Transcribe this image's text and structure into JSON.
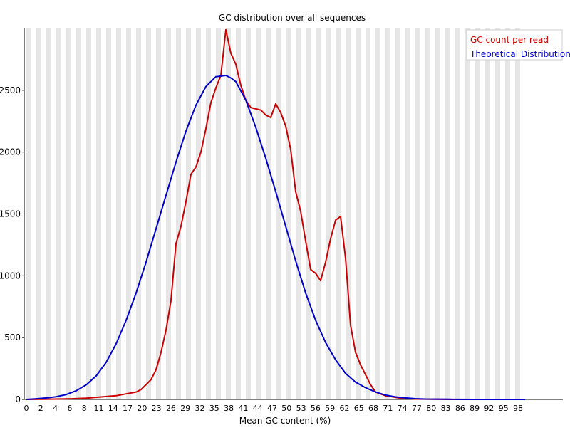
{
  "chart_data": {
    "type": "line",
    "title": "GC distribution over all sequences",
    "xlabel": "Mean GC content (%)",
    "ylabel": "",
    "xlim": [
      0,
      100
    ],
    "ylim": [
      0,
      3000
    ],
    "x_tick_labels": [
      "0",
      "2",
      "4",
      "6",
      "8",
      "11",
      "14",
      "17",
      "20",
      "23",
      "26",
      "29",
      "32",
      "35",
      "38",
      "41",
      "44",
      "47",
      "50",
      "53",
      "56",
      "59",
      "62",
      "65",
      "68",
      "71",
      "74",
      "77",
      "80",
      "83",
      "86",
      "89",
      "92",
      "95",
      "98"
    ],
    "y_ticks": [
      0,
      500,
      1000,
      1500,
      2000,
      2500
    ],
    "grid": "alternating vertical bands",
    "legend_position": "top-right",
    "series": [
      {
        "name": "GC count per read",
        "color": "#cc0000",
        "x": [
          0,
          3,
          6,
          9,
          12,
          15,
          18,
          20,
          22,
          23,
          24,
          25,
          26,
          27,
          28,
          29,
          30,
          31,
          32,
          33,
          34,
          35,
          36,
          37,
          38,
          39,
          40,
          41,
          42,
          43,
          44,
          45,
          46,
          47,
          48,
          49,
          50,
          51,
          52,
          53,
          54,
          55,
          56,
          57,
          58,
          59,
          60,
          61,
          62,
          63,
          64,
          65,
          66,
          67,
          68,
          69,
          70,
          72,
          75,
          78,
          85,
          100
        ],
        "values": [
          0,
          2,
          3,
          5,
          10,
          20,
          30,
          45,
          60,
          80,
          120,
          160,
          240,
          380,
          560,
          800,
          1260,
          1400,
          1600,
          1820,
          1880,
          2000,
          2190,
          2400,
          2520,
          2620,
          2990,
          2800,
          2710,
          2540,
          2420,
          2360,
          2350,
          2340,
          2300,
          2280,
          2390,
          2320,
          2210,
          2020,
          1680,
          1520,
          1280,
          1050,
          1020,
          960,
          1110,
          1300,
          1450,
          1480,
          1140,
          600,
          380,
          280,
          200,
          120,
          60,
          30,
          10,
          3,
          0,
          0
        ]
      },
      {
        "name": "Theoretical Distribution",
        "color": "#0000cc",
        "x": [
          0,
          2,
          4,
          6,
          8,
          10,
          12,
          14,
          16,
          18,
          20,
          22,
          24,
          26,
          28,
          30,
          32,
          34,
          36,
          38,
          40,
          41,
          42,
          44,
          46,
          48,
          50,
          52,
          54,
          56,
          58,
          60,
          62,
          64,
          66,
          68,
          70,
          72,
          74,
          76,
          78,
          80,
          85,
          90,
          100
        ],
        "values": [
          0,
          5,
          12,
          22,
          40,
          70,
          118,
          190,
          300,
          450,
          640,
          860,
          1110,
          1380,
          1650,
          1920,
          2170,
          2380,
          2530,
          2610,
          2620,
          2600,
          2570,
          2420,
          2200,
          1950,
          1680,
          1400,
          1120,
          860,
          640,
          460,
          320,
          210,
          140,
          95,
          60,
          35,
          20,
          12,
          6,
          3,
          1,
          0,
          0
        ]
      }
    ]
  }
}
